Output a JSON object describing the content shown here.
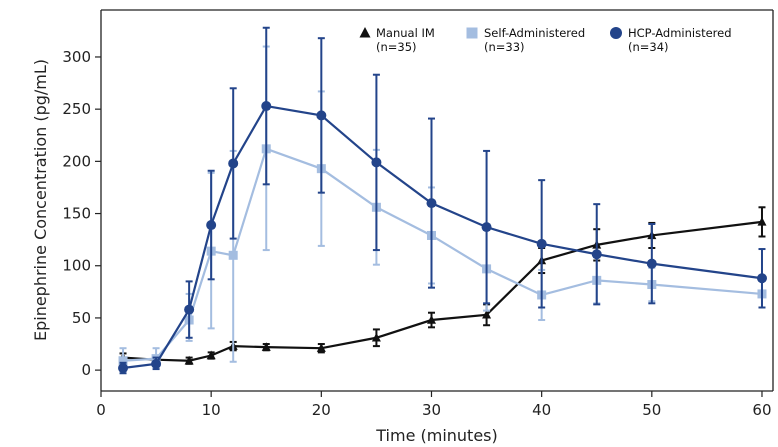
{
  "chart_data": {
    "type": "line",
    "title": "",
    "xlabel": "Time (minutes)",
    "ylabel": "Epinephrine Concentration (pg/mL)",
    "xlim": [
      0,
      61
    ],
    "ylim": [
      -20,
      345
    ],
    "xticks": [
      0,
      10,
      20,
      30,
      40,
      50,
      60
    ],
    "yticks": [
      0,
      50,
      100,
      150,
      200,
      250,
      300
    ],
    "grid": false,
    "legend_position": "top-right",
    "series": [
      {
        "name": "Manual IM",
        "legend_label": "Manual IM",
        "legend_n": "(n=35)",
        "marker": "triangle",
        "color": "#111111",
        "x": [
          2,
          5,
          8,
          10,
          12,
          15,
          20,
          25,
          30,
          35,
          40,
          45,
          50,
          60
        ],
        "y": [
          12,
          10,
          9,
          14,
          23,
          22,
          21,
          31,
          48,
          53,
          105,
          120,
          129,
          142
        ],
        "err_low": [
          4,
          3,
          3,
          3,
          4,
          3,
          4,
          8,
          7,
          10,
          12,
          15,
          12,
          14
        ],
        "err_high": [
          4,
          3,
          3,
          3,
          4,
          3,
          4,
          8,
          7,
          10,
          12,
          15,
          12,
          14
        ]
      },
      {
        "name": "Self-Administered",
        "legend_label": "Self-Administered",
        "legend_n": "(n=33)",
        "marker": "square",
        "color": "#a4bde0",
        "x": [
          2,
          5,
          8,
          10,
          12,
          15,
          20,
          25,
          30,
          35,
          40,
          45,
          50,
          60
        ],
        "y": [
          9,
          11,
          48,
          114,
          110,
          212,
          193,
          156,
          129,
          97,
          72,
          86,
          82,
          73
        ],
        "err_low": [
          9,
          8,
          20,
          74,
          102,
          97,
          74,
          55,
          46,
          40,
          24,
          22,
          16,
          13
        ],
        "err_high": [
          12,
          10,
          25,
          75,
          100,
          98,
          74,
          55,
          46,
          40,
          24,
          22,
          16,
          13
        ]
      },
      {
        "name": "HCP-Administered",
        "legend_label": "HCP-Administered",
        "legend_n": "(n=34)",
        "marker": "circle",
        "color": "#23448a",
        "x": [
          2,
          5,
          8,
          10,
          12,
          15,
          20,
          25,
          30,
          35,
          40,
          45,
          50,
          60
        ],
        "y": [
          2,
          6,
          58,
          139,
          198,
          253,
          244,
          199,
          160,
          137,
          121,
          111,
          102,
          88
        ],
        "err_low": [
          5,
          5,
          27,
          52,
          72,
          75,
          74,
          84,
          81,
          73,
          61,
          48,
          38,
          28
        ],
        "err_high": [
          5,
          6,
          27,
          52,
          72,
          75,
          74,
          84,
          81,
          73,
          61,
          48,
          38,
          28
        ]
      }
    ]
  }
}
